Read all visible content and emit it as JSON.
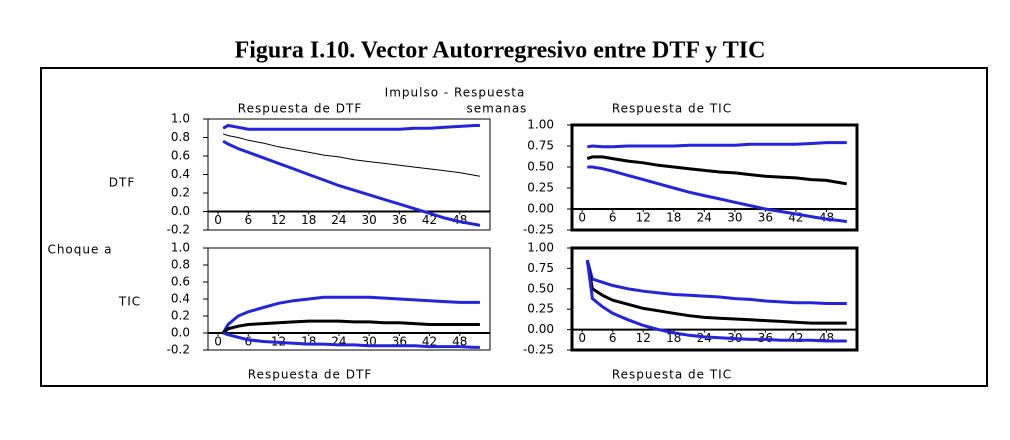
{
  "title": "Figura I.10.  Vector Autorregresivo entre DTF  y  TIC",
  "header": "Impulso - Respuesta",
  "unit": "semanas",
  "shock_label": "Choque a",
  "row_labels": [
    "DTF",
    "TIC"
  ],
  "chart_data": [
    {
      "type": "line",
      "title": "Respuesta de DTF",
      "x": [
        1,
        2,
        4,
        6,
        9,
        12,
        15,
        18,
        21,
        24,
        27,
        30,
        33,
        36,
        39,
        42,
        45,
        48,
        51,
        52
      ],
      "xlim": [
        -2,
        54
      ],
      "xticks": [
        0,
        6,
        12,
        18,
        24,
        30,
        36,
        42,
        48
      ],
      "ylim": [
        -0.2,
        1.0
      ],
      "yticks": [
        {
          "value": 1.0,
          "label": "1.0"
        },
        0.8,
        0.6,
        0.4,
        0.2,
        {
          "value": 0.0,
          "label": "0.0"
        },
        -0.2
      ],
      "series": [
        {
          "color": "#2424d8",
          "values": [
            0.9,
            0.93,
            0.91,
            0.89,
            0.89,
            0.89,
            0.89,
            0.89,
            0.89,
            0.89,
            0.89,
            0.89,
            0.89,
            0.89,
            0.9,
            0.9,
            0.91,
            0.92,
            0.93,
            0.93
          ]
        },
        {
          "color": "#000000",
          "values": [
            0.84,
            0.82,
            0.8,
            0.77,
            0.74,
            0.7,
            0.67,
            0.64,
            0.61,
            0.59,
            0.56,
            0.54,
            0.52,
            0.5,
            0.48,
            0.46,
            0.44,
            0.42,
            0.39,
            0.38
          ]
        },
        {
          "color": "#2424d8",
          "values": [
            0.76,
            0.73,
            0.68,
            0.64,
            0.58,
            0.52,
            0.46,
            0.4,
            0.34,
            0.28,
            0.23,
            0.18,
            0.13,
            0.08,
            0.03,
            -0.02,
            -0.07,
            -0.11,
            -0.14,
            -0.15
          ]
        }
      ]
    },
    {
      "type": "line",
      "title": "Respuesta de TIC",
      "x": [
        1,
        2,
        4,
        6,
        9,
        12,
        15,
        18,
        21,
        24,
        27,
        30,
        33,
        36,
        39,
        42,
        45,
        48,
        51,
        52
      ],
      "xlim": [
        -2,
        54
      ],
      "xticks": [
        0,
        6,
        12,
        18,
        24,
        30,
        36,
        42,
        48
      ],
      "ylim": [
        -0.25,
        1.0
      ],
      "yticks": [
        {
          "value": 1.0,
          "label": "1.00"
        },
        0.75,
        {
          "value": 0.5,
          "label": "0.50"
        },
        0.25,
        {
          "value": 0.0,
          "label": "0.00"
        },
        -0.25
      ],
      "series": [
        {
          "color": "#2424d8",
          "values": [
            0.74,
            0.75,
            0.74,
            0.74,
            0.75,
            0.75,
            0.75,
            0.75,
            0.76,
            0.76,
            0.76,
            0.76,
            0.77,
            0.77,
            0.77,
            0.77,
            0.78,
            0.79,
            0.79,
            0.79
          ]
        },
        {
          "color": "#000000",
          "values": [
            0.6,
            0.62,
            0.62,
            0.6,
            0.57,
            0.55,
            0.52,
            0.5,
            0.48,
            0.46,
            0.44,
            0.43,
            0.41,
            0.39,
            0.38,
            0.37,
            0.35,
            0.34,
            0.31,
            0.3
          ]
        },
        {
          "color": "#2424d8",
          "values": [
            0.5,
            0.5,
            0.48,
            0.45,
            0.4,
            0.35,
            0.3,
            0.25,
            0.2,
            0.16,
            0.12,
            0.08,
            0.04,
            0.0,
            -0.03,
            -0.06,
            -0.09,
            -0.12,
            -0.14,
            -0.15
          ]
        }
      ]
    },
    {
      "type": "line",
      "title": "Respuesta de DTF",
      "x": [
        1,
        2,
        4,
        6,
        9,
        12,
        15,
        18,
        21,
        24,
        27,
        30,
        33,
        36,
        39,
        42,
        45,
        48,
        51,
        52
      ],
      "xlim": [
        -2,
        54
      ],
      "xticks": [
        0,
        6,
        12,
        18,
        24,
        30,
        36,
        42,
        48
      ],
      "ylim": [
        -0.2,
        1.0
      ],
      "yticks": [
        {
          "value": 1.0,
          "label": "1.0"
        },
        0.8,
        0.6,
        0.4,
        0.2,
        {
          "value": 0.0,
          "label": "0.0"
        },
        -0.2
      ],
      "series": [
        {
          "color": "#2424d8",
          "values": [
            0.0,
            0.1,
            0.2,
            0.25,
            0.3,
            0.35,
            0.38,
            0.4,
            0.42,
            0.42,
            0.42,
            0.42,
            0.41,
            0.4,
            0.39,
            0.38,
            0.37,
            0.36,
            0.36,
            0.36
          ]
        },
        {
          "color": "#000000",
          "values": [
            0.0,
            0.05,
            0.08,
            0.1,
            0.11,
            0.12,
            0.13,
            0.14,
            0.14,
            0.14,
            0.13,
            0.13,
            0.12,
            0.12,
            0.11,
            0.1,
            0.1,
            0.1,
            0.1,
            0.1
          ]
        },
        {
          "color": "#2424d8",
          "values": [
            0.0,
            -0.02,
            -0.05,
            -0.08,
            -0.1,
            -0.11,
            -0.12,
            -0.13,
            -0.13,
            -0.14,
            -0.14,
            -0.15,
            -0.15,
            -0.15,
            -0.15,
            -0.16,
            -0.16,
            -0.16,
            -0.17,
            -0.17
          ]
        }
      ]
    },
    {
      "type": "line",
      "title": "Respuesta de TIC",
      "x": [
        1,
        2,
        4,
        6,
        9,
        12,
        15,
        18,
        21,
        24,
        27,
        30,
        33,
        36,
        39,
        42,
        45,
        48,
        51,
        52
      ],
      "xlim": [
        -2,
        54
      ],
      "xticks": [
        0,
        6,
        12,
        18,
        24,
        30,
        36,
        42,
        48
      ],
      "ylim": [
        -0.25,
        1.0
      ],
      "yticks": [
        {
          "value": 1.0,
          "label": "1.00"
        },
        0.75,
        {
          "value": 0.5,
          "label": "0.50"
        },
        0.25,
        {
          "value": 0.0,
          "label": "0.00"
        },
        -0.25
      ],
      "series": [
        {
          "color": "#2424d8",
          "values": [
            0.85,
            0.62,
            0.58,
            0.54,
            0.5,
            0.47,
            0.45,
            0.43,
            0.42,
            0.41,
            0.4,
            0.38,
            0.37,
            0.35,
            0.34,
            0.33,
            0.33,
            0.32,
            0.32,
            0.32
          ]
        },
        {
          "color": "#000000",
          "values": [
            0.85,
            0.5,
            0.42,
            0.36,
            0.31,
            0.26,
            0.23,
            0.2,
            0.17,
            0.15,
            0.14,
            0.13,
            0.12,
            0.11,
            0.1,
            0.09,
            0.08,
            0.08,
            0.08,
            0.08
          ]
        },
        {
          "color": "#2424d8",
          "values": [
            0.85,
            0.38,
            0.28,
            0.2,
            0.12,
            0.05,
            0.0,
            -0.04,
            -0.07,
            -0.09,
            -0.1,
            -0.11,
            -0.12,
            -0.12,
            -0.13,
            -0.13,
            -0.13,
            -0.14,
            -0.14,
            -0.14
          ]
        }
      ]
    }
  ]
}
